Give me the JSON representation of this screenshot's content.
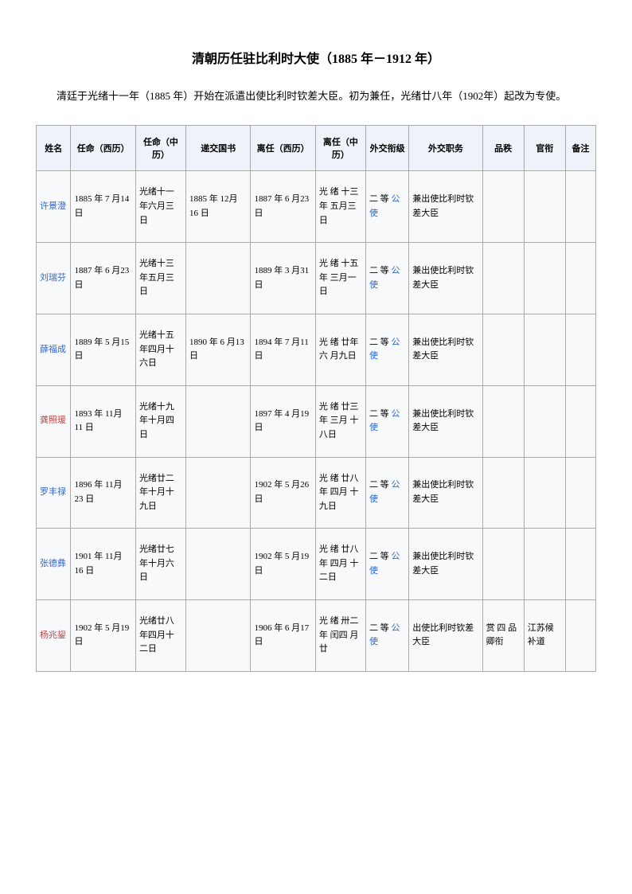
{
  "title": "清朝历任驻比利时大使（1885 年－1912 年）",
  "intro": "清廷于光绪十一年（1885 年）开始在派遣出使比利时钦差大臣。初为兼任，光绪廿八年（1902年）起改为专使。",
  "table": {
    "headers": [
      "姓名",
      "任命（西历）",
      "任命（中历）",
      "递交国书",
      "离任（西历）",
      "离任（中历）",
      "外交衔级",
      "外交职务",
      "品秩",
      "官衔",
      "备注"
    ],
    "rows": [
      {
        "name": "许景澄",
        "nameClass": "name-link",
        "appointWest": "1885 年 7 月14 日",
        "appointCn": "光绪十一年六月三日",
        "credential": "1885 年 12月 16 日",
        "leaveWest": "1887 年 6 月23 日",
        "leaveCn": "光 绪 十三 年 五月三日",
        "rank": "二 等 公使",
        "rankLink": true,
        "duty": "兼出使比利时钦差大臣",
        "grade": "",
        "official": "",
        "note": ""
      },
      {
        "name": "刘瑞芬",
        "nameClass": "name-link",
        "appointWest": "1887 年 6 月23 日",
        "appointCn": "光绪十三年五月三日",
        "credential": "",
        "leaveWest": "1889 年 3 月31 日",
        "leaveCn": "光 绪 十五 年 三月一日",
        "rank": "二 等 公使",
        "rankLink": true,
        "duty": "兼出使比利时钦差大臣",
        "grade": "",
        "official": "",
        "note": ""
      },
      {
        "name": "薛福成",
        "nameClass": "name-link",
        "appointWest": "1889 年 5 月15 日",
        "appointCn": "光绪十五年四月十六日",
        "credential": "1890 年 6 月13 日",
        "leaveWest": "1894 年 7 月11 日",
        "leaveCn": "光 绪 廿年 六 月九日",
        "rank": "二 等 公使",
        "rankLink": true,
        "duty": "兼出使比利时钦差大臣",
        "grade": "",
        "official": "",
        "note": ""
      },
      {
        "name": "龚照瑗",
        "nameClass": "name-red",
        "appointWest": "1893 年 11月 11 日",
        "appointCn": "光绪十九年十月四日",
        "credential": "",
        "leaveWest": "1897 年 4 月19 日",
        "leaveCn": "光 绪 廿三 年 三月 十 八日",
        "rank": "二 等 公使",
        "rankLink": true,
        "duty": "兼出使比利时钦差大臣",
        "grade": "",
        "official": "",
        "note": ""
      },
      {
        "name": "罗丰禄",
        "nameClass": "name-link",
        "appointWest": "1896 年 11月 23 日",
        "appointCn": "光绪廿二年十月十九日",
        "credential": "",
        "leaveWest": "1902 年 5 月26 日",
        "leaveCn": "光 绪 廿八 年 四月 十 九日",
        "rank": "二 等 公使",
        "rankLink": true,
        "duty": "兼出使比利时钦差大臣",
        "grade": "",
        "official": "",
        "note": ""
      },
      {
        "name": "张德彝",
        "nameClass": "name-link",
        "appointWest": "1901 年 11月 16 日",
        "appointCn": "光绪廿七年十月六日",
        "credential": "",
        "leaveWest": "1902 年 5 月19 日",
        "leaveCn": "光 绪 廿八 年 四月 十 二日",
        "rank": "二 等 公使",
        "rankLink": true,
        "duty": "兼出使比利时钦差大臣",
        "grade": "",
        "official": "",
        "note": ""
      },
      {
        "name": "杨兆鋆",
        "nameClass": "name-red",
        "appointWest": "1902 年 5 月19 日",
        "appointCn": "光绪廿八年四月十二日",
        "credential": "",
        "leaveWest": "1906 年 6 月17 日",
        "leaveCn": "光 绪 卅二 年 闰四 月 廿",
        "rank": "二 等 公使",
        "rankLink": true,
        "duty": "出使比利时钦差大臣",
        "grade": "赏 四 品卿衔",
        "official": "江苏候补道",
        "note": ""
      }
    ]
  }
}
